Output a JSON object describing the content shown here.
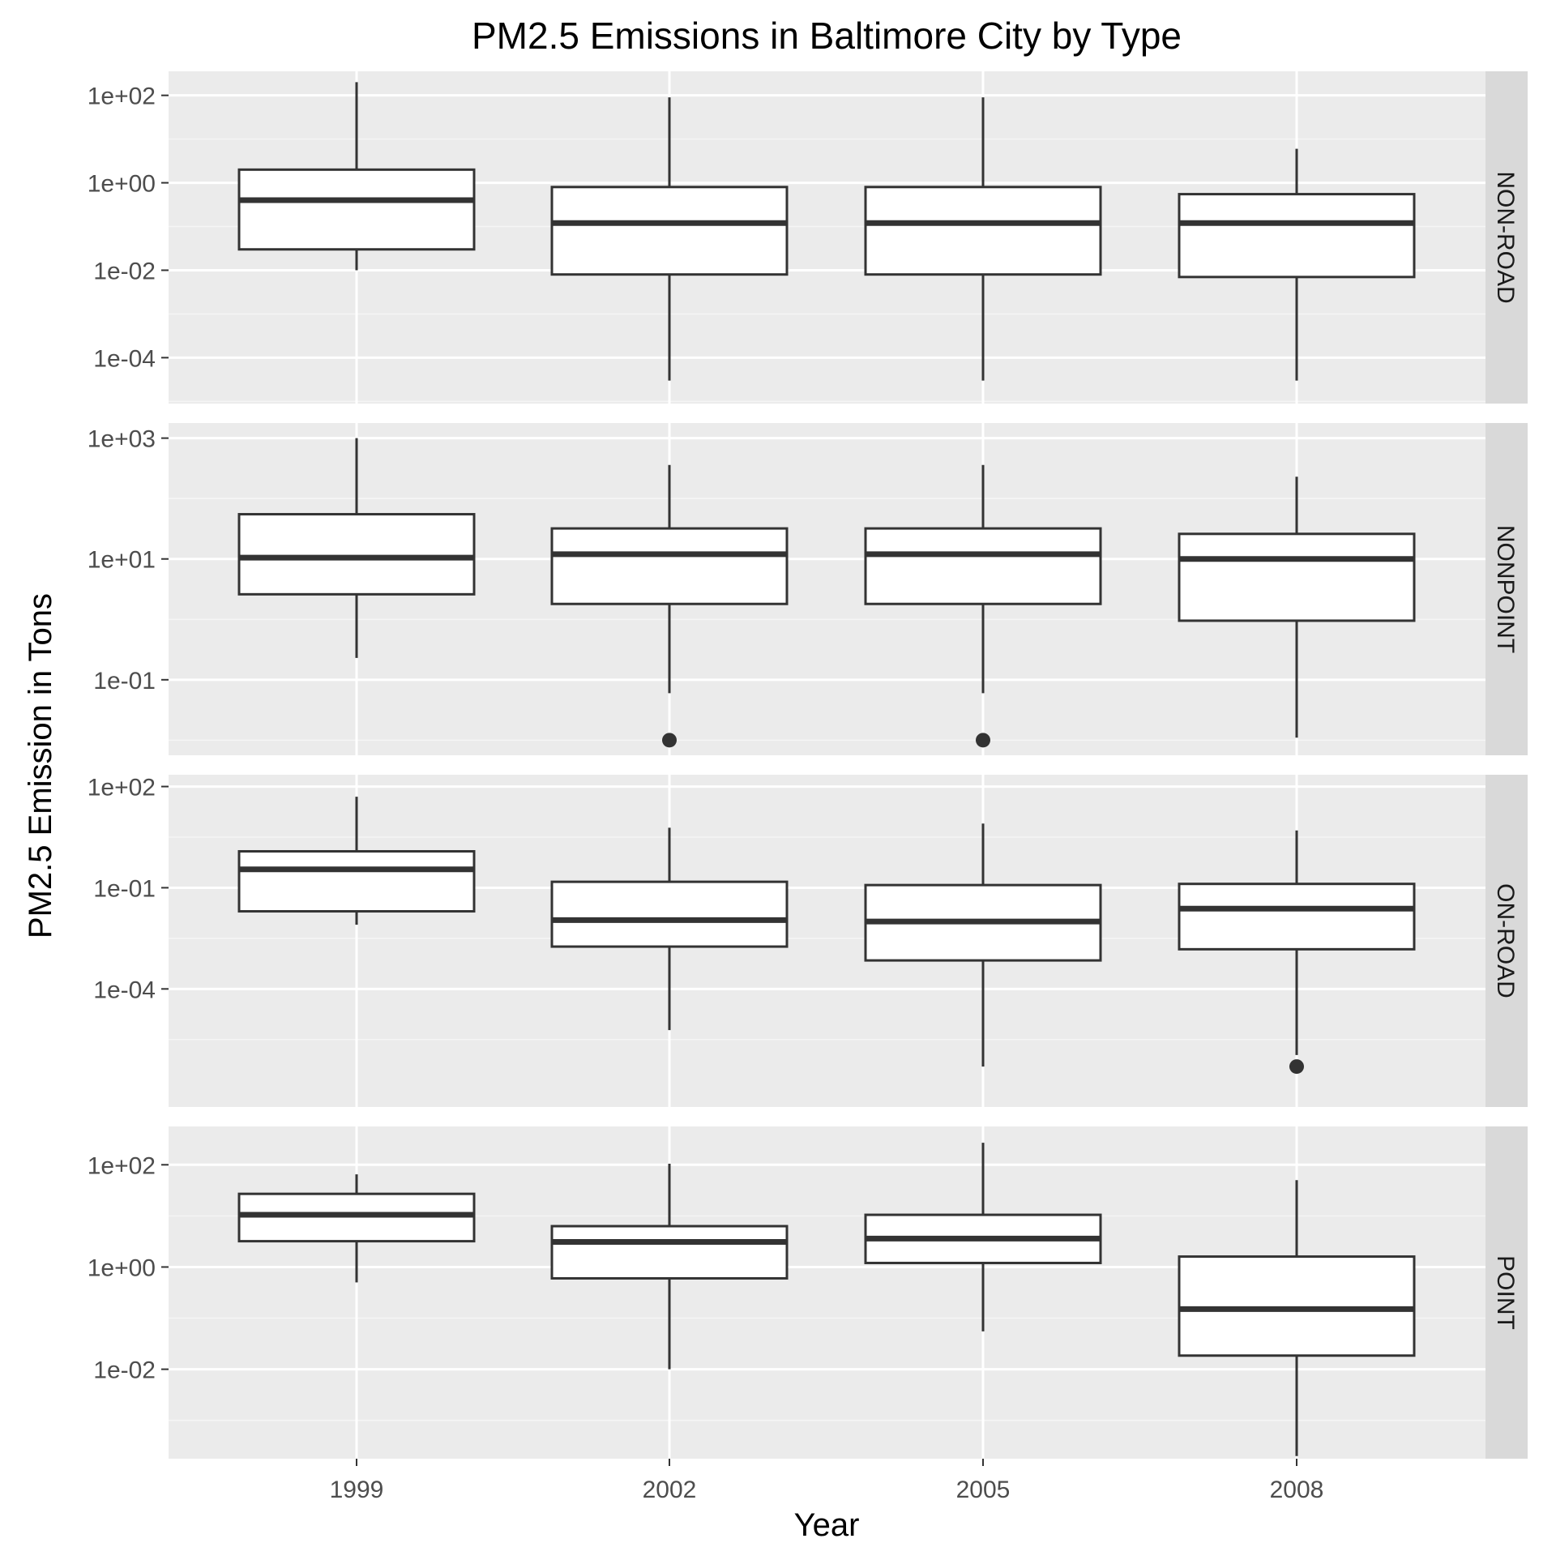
{
  "chart_data": {
    "type": "boxplot",
    "title": "PM2.5 Emissions in Baltimore City by Type",
    "xlabel": "Year",
    "ylabel": "PM2.5 Emission in Tons",
    "y_scale": "log10",
    "categories": [
      "1999",
      "2002",
      "2005",
      "2008"
    ],
    "facets": [
      {
        "label": "NON-ROAD",
        "ylim_log10": [
          -5.05,
          2.55
        ],
        "yticks": [
          {
            "value": 100,
            "label": "1e+02"
          },
          {
            "value": 1,
            "label": "1e+00"
          },
          {
            "value": 0.01,
            "label": "1e-02"
          },
          {
            "value": 0.0001,
            "label": "1e-04"
          }
        ],
        "boxes": [
          {
            "year": "1999",
            "whisker_low": 0.01,
            "q1": 0.03,
            "median": 0.4,
            "q3": 2.0,
            "whisker_high": 200
          },
          {
            "year": "2002",
            "whisker_low": 3e-05,
            "q1": 0.008,
            "median": 0.12,
            "q3": 0.8,
            "whisker_high": 90
          },
          {
            "year": "2005",
            "whisker_low": 3e-05,
            "q1": 0.008,
            "median": 0.12,
            "q3": 0.8,
            "whisker_high": 90
          },
          {
            "year": "2008",
            "whisker_low": 3e-05,
            "q1": 0.007,
            "median": 0.12,
            "q3": 0.55,
            "whisker_high": 6
          }
        ],
        "outliers": []
      },
      {
        "label": "NONPOINT",
        "ylim_log10": [
          -2.25,
          3.25
        ],
        "yticks": [
          {
            "value": 1000,
            "label": "1e+03"
          },
          {
            "value": 10,
            "label": "1e+01"
          },
          {
            "value": 0.1,
            "label": "1e-01"
          }
        ],
        "boxes": [
          {
            "year": "1999",
            "whisker_low": 0.23,
            "q1": 2.6,
            "median": 10.5,
            "q3": 55,
            "whisker_high": 1000
          },
          {
            "year": "2002",
            "whisker_low": 0.06,
            "q1": 1.8,
            "median": 12,
            "q3": 32,
            "whisker_high": 360
          },
          {
            "year": "2005",
            "whisker_low": 0.06,
            "q1": 1.8,
            "median": 12,
            "q3": 32,
            "whisker_high": 360
          },
          {
            "year": "2008",
            "whisker_low": 0.011,
            "q1": 0.95,
            "median": 10,
            "q3": 26,
            "whisker_high": 230
          }
        ],
        "outliers": [
          {
            "year": "2002",
            "value": 0.01
          },
          {
            "year": "2005",
            "value": 0.01
          }
        ]
      },
      {
        "label": "ON-ROAD",
        "ylim_log10": [
          -7.5,
          2.35
        ],
        "yticks": [
          {
            "value": 100,
            "label": "1e+02"
          },
          {
            "value": 0.1,
            "label": "1e-01"
          },
          {
            "value": 0.0001,
            "label": "1e-04"
          }
        ],
        "boxes": [
          {
            "year": "1999",
            "whisker_low": 0.008,
            "q1": 0.02,
            "median": 0.35,
            "q3": 1.2,
            "whisker_high": 50
          },
          {
            "year": "2002",
            "whisker_low": 6e-06,
            "q1": 0.0018,
            "median": 0.011,
            "q3": 0.15,
            "whisker_high": 6
          },
          {
            "year": "2005",
            "whisker_low": 5e-07,
            "q1": 0.0007,
            "median": 0.01,
            "q3": 0.12,
            "whisker_high": 8
          },
          {
            "year": "2008",
            "whisker_low": 1.1e-06,
            "q1": 0.0015,
            "median": 0.024,
            "q3": 0.13,
            "whisker_high": 5
          }
        ],
        "outliers": [
          {
            "year": "2008",
            "value": 5e-07
          }
        ]
      },
      {
        "label": "POINT",
        "ylim_log10": [
          -3.75,
          2.75
        ],
        "yticks": [
          {
            "value": 100,
            "label": "1e+02"
          },
          {
            "value": 1,
            "label": "1e+00"
          },
          {
            "value": 0.01,
            "label": "1e-02"
          }
        ],
        "boxes": [
          {
            "year": "1999",
            "whisker_low": 0.5,
            "q1": 3.2,
            "median": 10.5,
            "q3": 27,
            "whisker_high": 65
          },
          {
            "year": "2002",
            "whisker_low": 0.01,
            "q1": 0.6,
            "median": 3.1,
            "q3": 6.3,
            "whisker_high": 105
          },
          {
            "year": "2005",
            "whisker_low": 0.055,
            "q1": 1.2,
            "median": 3.6,
            "q3": 10.5,
            "whisker_high": 270
          },
          {
            "year": "2008",
            "whisker_low": 0.0002,
            "q1": 0.0185,
            "median": 0.15,
            "q3": 1.6,
            "whisker_high": 50
          }
        ],
        "outliers": []
      }
    ],
    "grid": true,
    "legend": "none"
  }
}
